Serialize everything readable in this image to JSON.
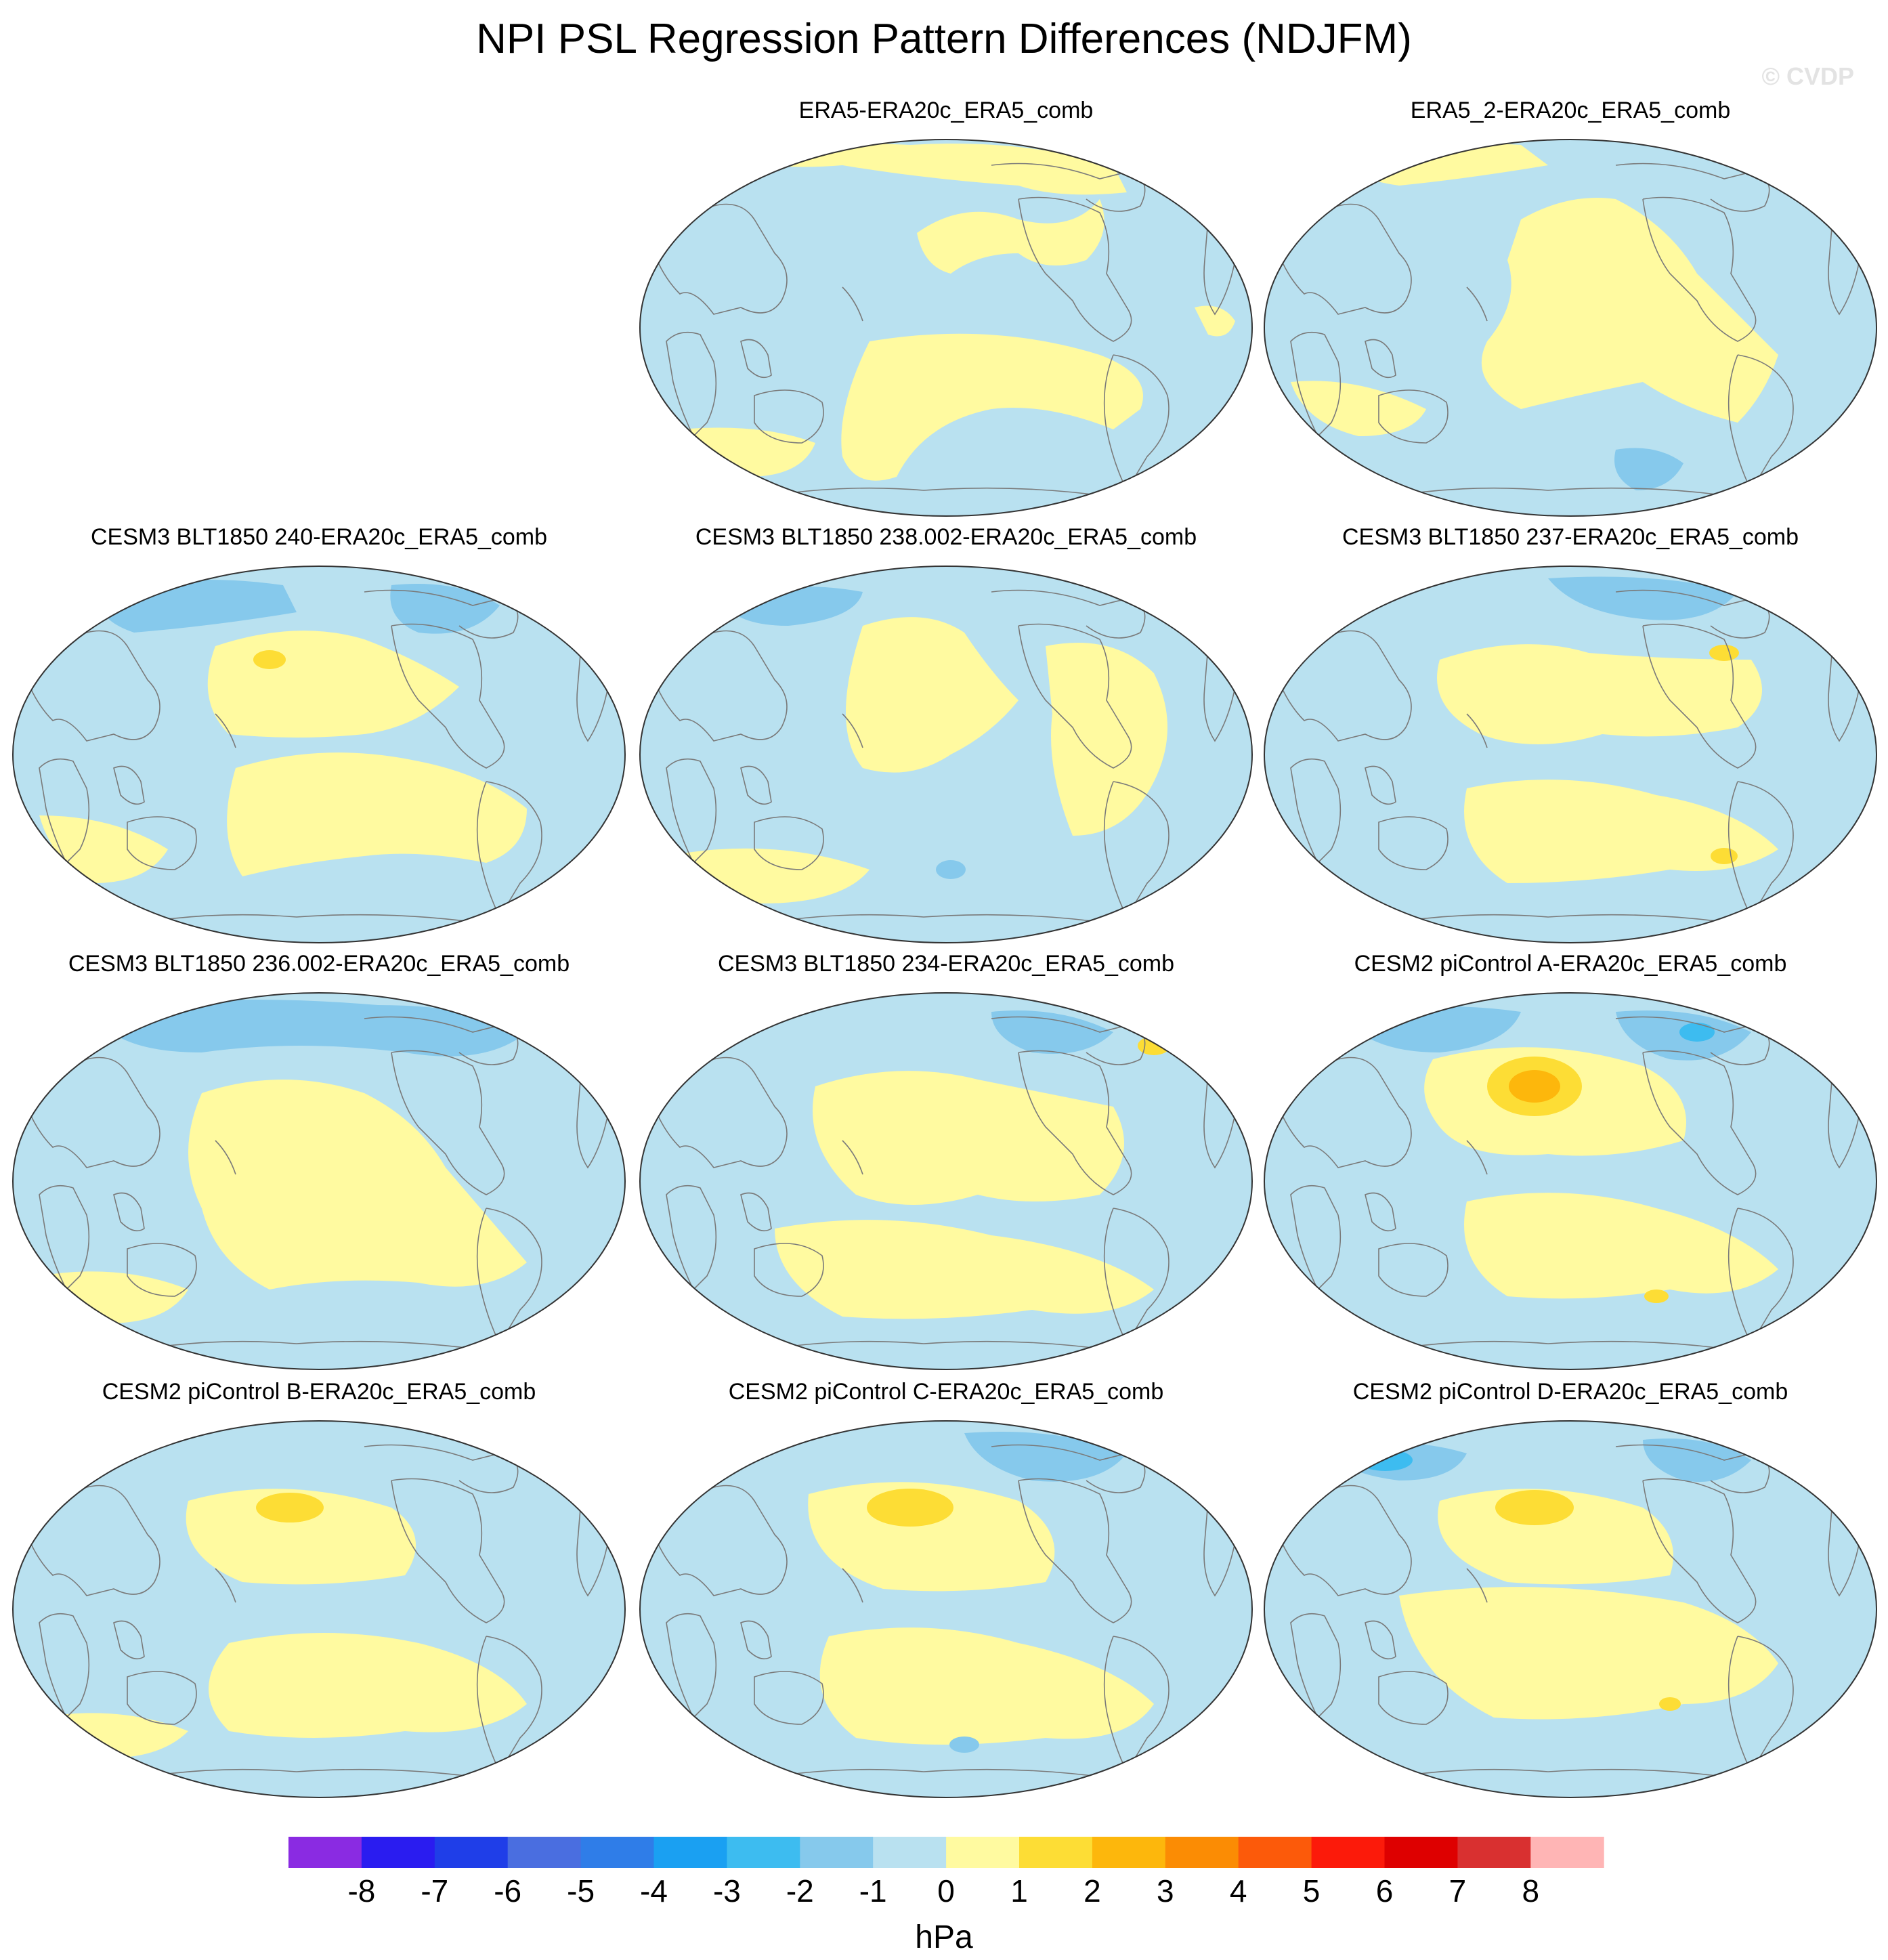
{
  "title": "NPI PSL Regression Pattern Differences (NDJFM)",
  "watermark": "© CVDP",
  "panels": [
    {
      "title": "",
      "empty": true,
      "pattern": 0
    },
    {
      "title": "ERA5-ERA20c_ERA5_comb",
      "empty": false,
      "pattern": 1
    },
    {
      "title": "ERA5_2-ERA20c_ERA5_comb",
      "empty": false,
      "pattern": 2
    },
    {
      "title": "CESM3 BLT1850 240-ERA20c_ERA5_comb",
      "empty": false,
      "pattern": 3
    },
    {
      "title": "CESM3 BLT1850 238.002-ERA20c_ERA5_comb",
      "empty": false,
      "pattern": 4
    },
    {
      "title": "CESM3 BLT1850 237-ERA20c_ERA5_comb",
      "empty": false,
      "pattern": 5
    },
    {
      "title": "CESM3 BLT1850 236.002-ERA20c_ERA5_comb",
      "empty": false,
      "pattern": 6
    },
    {
      "title": "CESM3 BLT1850 234-ERA20c_ERA5_comb",
      "empty": false,
      "pattern": 7
    },
    {
      "title": "CESM2 piControl A-ERA20c_ERA5_comb",
      "empty": false,
      "pattern": 8
    },
    {
      "title": "CESM2 piControl B-ERA20c_ERA5_comb",
      "empty": false,
      "pattern": 9
    },
    {
      "title": "CESM2 piControl C-ERA20c_ERA5_comb",
      "empty": false,
      "pattern": 10
    },
    {
      "title": "CESM2 piControl D-ERA20c_ERA5_comb",
      "empty": false,
      "pattern": 11
    }
  ],
  "colorbar": {
    "unit": "hPa",
    "tick_labels": [
      "-8",
      "-7",
      "-6",
      "-5",
      "-4",
      "-3",
      "-2",
      "-1",
      "0",
      "1",
      "2",
      "3",
      "4",
      "5",
      "6",
      "7",
      "8"
    ],
    "colors": [
      "#8a2be2",
      "#2a1cf0",
      "#1f3ee8",
      "#4a6ee0",
      "#2f7de8",
      "#1aa0f2",
      "#3dbcf0",
      "#86c9ec",
      "#b9e1f0",
      "#fffaa0",
      "#fddd35",
      "#fdb70c",
      "#fb8c04",
      "#fc5a0a",
      "#fc1a0a",
      "#de0000",
      "#d93030",
      "#ffb5b5"
    ]
  },
  "chart_data": {
    "type": "map",
    "title": "NPI PSL Regression Pattern Differences (NDJFM)",
    "projection": "Robinson (Pacific-centered)",
    "unit": "hPa",
    "contour_levels": [
      -8,
      -7,
      -6,
      -5,
      -4,
      -3,
      -2,
      -1,
      0,
      1,
      2,
      3,
      4,
      5,
      6,
      7,
      8
    ],
    "panels": [
      {
        "name": "ERA5-ERA20c_ERA5_comb",
        "min_approx": -1,
        "max_approx": 1
      },
      {
        "name": "ERA5_2-ERA20c_ERA5_comb",
        "min_approx": -2,
        "max_approx": 1
      },
      {
        "name": "CESM3 BLT1850 240-ERA20c_ERA5_comb",
        "min_approx": -2,
        "max_approx": 2
      },
      {
        "name": "CESM3 BLT1850 238.002-ERA20c_ERA5_comb",
        "min_approx": -2,
        "max_approx": 1
      },
      {
        "name": "CESM3 BLT1850 237-ERA20c_ERA5_comb",
        "min_approx": -2,
        "max_approx": 2
      },
      {
        "name": "CESM3 BLT1850 236.002-ERA20c_ERA5_comb",
        "min_approx": -3,
        "max_approx": 1
      },
      {
        "name": "CESM3 BLT1850 234-ERA20c_ERA5_comb",
        "min_approx": -2,
        "max_approx": 2
      },
      {
        "name": "CESM2 piControl A-ERA20c_ERA5_comb",
        "min_approx": -3,
        "max_approx": 3
      },
      {
        "name": "CESM2 piControl B-ERA20c_ERA5_comb",
        "min_approx": -2,
        "max_approx": 2
      },
      {
        "name": "CESM2 piControl C-ERA20c_ERA5_comb",
        "min_approx": -2,
        "max_approx": 2
      },
      {
        "name": "CESM2 piControl D-ERA20c_ERA5_comb",
        "min_approx": -3,
        "max_approx": 2
      }
    ]
  }
}
